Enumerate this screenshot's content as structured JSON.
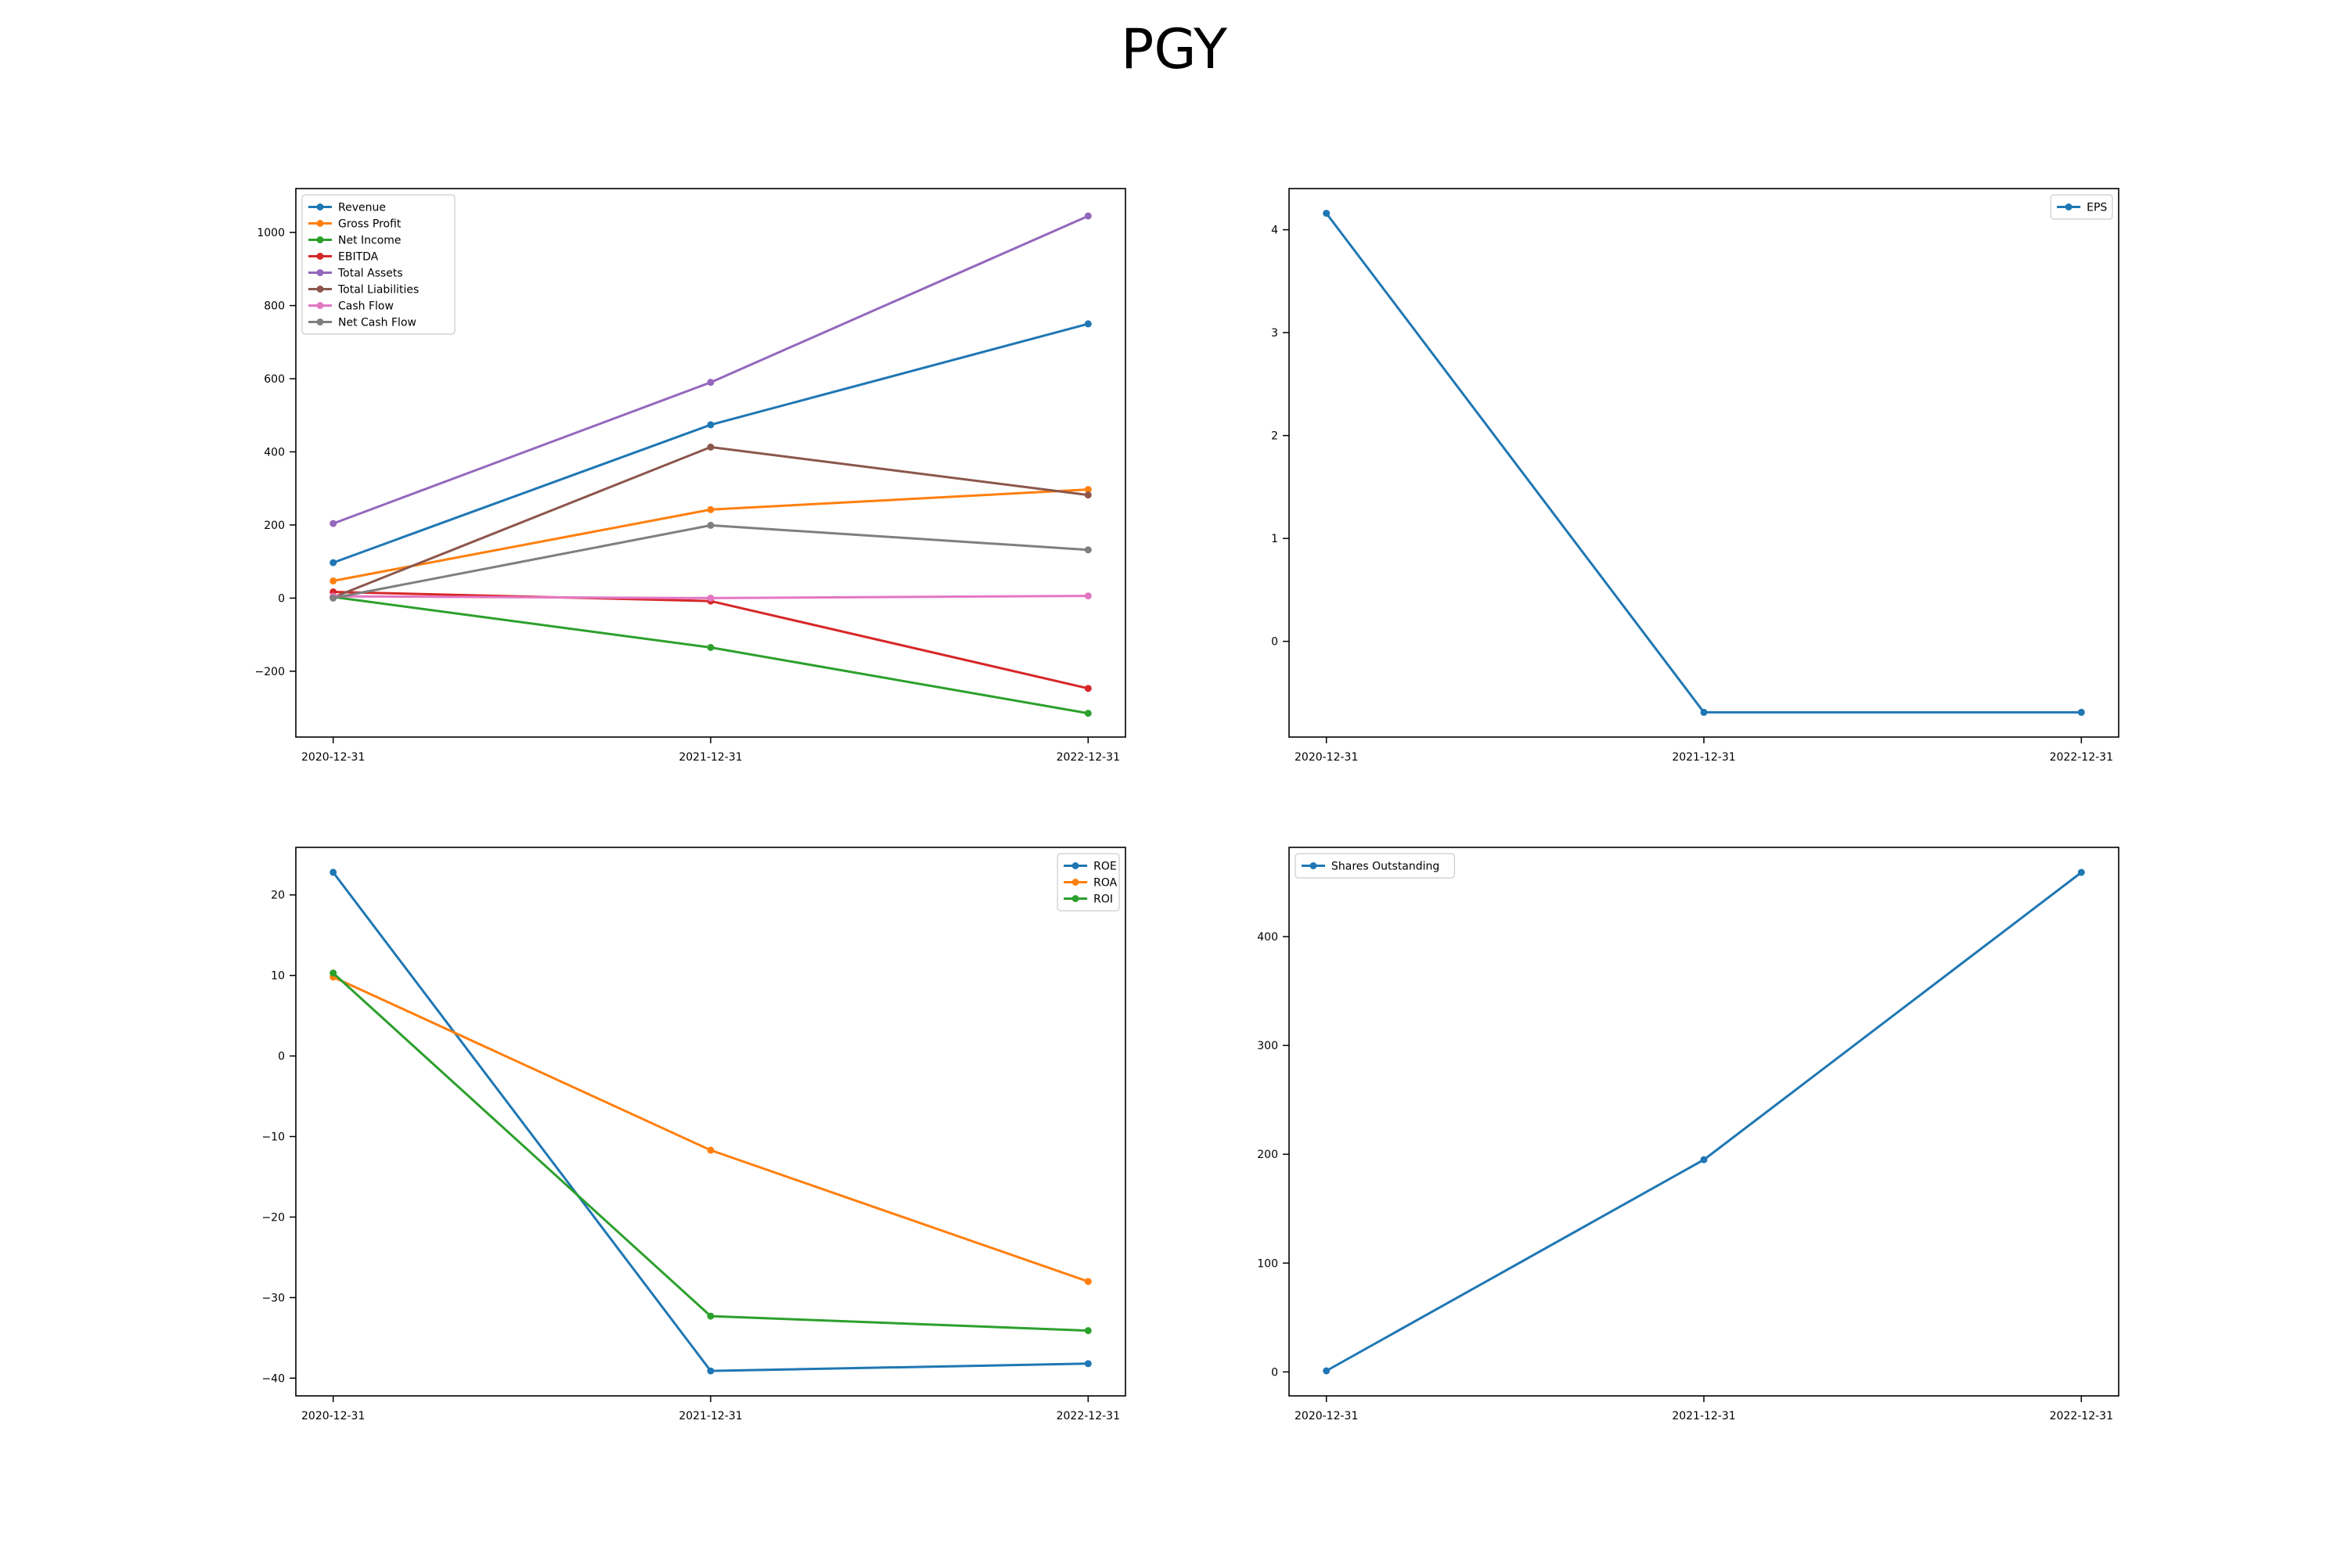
{
  "figure": {
    "title": "PGY"
  },
  "chart_data": [
    {
      "type": "line",
      "x": [
        "2020-12-31",
        "2021-12-31",
        "2022-12-31"
      ],
      "ylim": [
        -380,
        1120
      ],
      "yticks": [
        -200,
        0,
        200,
        400,
        600,
        800,
        1000
      ],
      "legend": "upper left",
      "series": [
        {
          "name": "Revenue",
          "color": "#1f77b4",
          "values": [
            97,
            474,
            750
          ]
        },
        {
          "name": "Gross Profit",
          "color": "#ff7f0e",
          "values": [
            47,
            242,
            297
          ]
        },
        {
          "name": "Net Income",
          "color": "#2ca02c",
          "values": [
            3,
            -135,
            -315
          ]
        },
        {
          "name": "EBITDA",
          "color": "#d62728",
          "values": [
            17,
            -8,
            -247
          ]
        },
        {
          "name": "Total Assets",
          "color": "#9467bd",
          "values": [
            204,
            590,
            1045
          ]
        },
        {
          "name": "Total Liabilities",
          "color": "#8c564b",
          "values": [
            2,
            413,
            282
          ]
        },
        {
          "name": "Cash Flow",
          "color": "#e377c2",
          "values": [
            5,
            0,
            6
          ]
        },
        {
          "name": "Net Cash Flow",
          "color": "#7f7f7f",
          "values": [
            0,
            199,
            132
          ]
        }
      ]
    },
    {
      "type": "line",
      "x": [
        "2020-12-31",
        "2021-12-31",
        "2022-12-31"
      ],
      "ylim": [
        -0.93,
        4.4
      ],
      "yticks": [
        0,
        1,
        2,
        3,
        4
      ],
      "legend": "upper right",
      "series": [
        {
          "name": "EPS",
          "color": "#1f77b4",
          "values": [
            4.16,
            -0.69,
            -0.69
          ]
        }
      ]
    },
    {
      "type": "line",
      "x": [
        "2020-12-31",
        "2021-12-31",
        "2022-12-31"
      ],
      "ylim": [
        -42.2,
        25.9
      ],
      "yticks": [
        -40,
        -30,
        -20,
        -10,
        0,
        10,
        20
      ],
      "legend": "upper right",
      "series": [
        {
          "name": "ROE",
          "color": "#1f77b4",
          "values": [
            22.8,
            -39.1,
            -38.2
          ]
        },
        {
          "name": "ROA",
          "color": "#ff7f0e",
          "values": [
            9.8,
            -11.7,
            -28.0
          ]
        },
        {
          "name": "ROI",
          "color": "#2ca02c",
          "values": [
            10.3,
            -32.3,
            -34.1
          ]
        }
      ]
    },
    {
      "type": "line",
      "x": [
        "2020-12-31",
        "2021-12-31",
        "2022-12-31"
      ],
      "ylim": [
        -22,
        482
      ],
      "yticks": [
        0,
        100,
        200,
        300,
        400
      ],
      "legend": "upper left",
      "series": [
        {
          "name": "Shares Outstanding",
          "color": "#1f77b4",
          "values": [
            1,
            195,
            459
          ]
        }
      ]
    }
  ]
}
